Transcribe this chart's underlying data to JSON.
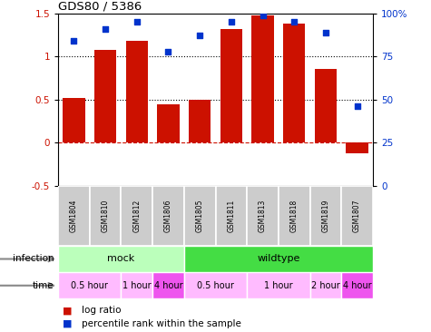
{
  "title": "GDS80 / 5386",
  "samples": [
    "GSM1804",
    "GSM1810",
    "GSM1812",
    "GSM1806",
    "GSM1805",
    "GSM1811",
    "GSM1813",
    "GSM1818",
    "GSM1819",
    "GSM1807"
  ],
  "log_ratio": [
    0.52,
    1.08,
    1.18,
    0.45,
    0.5,
    1.32,
    1.48,
    1.38,
    0.86,
    -0.12
  ],
  "percentile": [
    84,
    91,
    95,
    78,
    87,
    95,
    99,
    95,
    89,
    46
  ],
  "bar_color": "#cc1100",
  "dot_color": "#0033cc",
  "ylim_left": [
    -0.5,
    1.5
  ],
  "ylim_right": [
    0,
    100
  ],
  "yticks_left": [
    -0.5,
    0.0,
    0.5,
    1.0,
    1.5
  ],
  "ytick_labels_left": [
    "-0.5",
    "0",
    "0.5",
    "1",
    "1.5"
  ],
  "yticks_right": [
    0,
    25,
    50,
    75,
    100
  ],
  "ytick_labels_right": [
    "0",
    "25",
    "50",
    "75",
    "100%"
  ],
  "dotted_lines": [
    0.5,
    1.0
  ],
  "dashed_line": 0.0,
  "infection_groups": [
    {
      "label": "mock",
      "start": 0,
      "end": 4,
      "color": "#bbffbb"
    },
    {
      "label": "wildtype",
      "start": 4,
      "end": 10,
      "color": "#44dd44"
    }
  ],
  "time_groups": [
    {
      "label": "0.5 hour",
      "start": 0,
      "end": 2,
      "color": "#ffbbff"
    },
    {
      "label": "1 hour",
      "start": 2,
      "end": 3,
      "color": "#ffbbff"
    },
    {
      "label": "4 hour",
      "start": 3,
      "end": 4,
      "color": "#ee55ee"
    },
    {
      "label": "0.5 hour",
      "start": 4,
      "end": 6,
      "color": "#ffbbff"
    },
    {
      "label": "1 hour",
      "start": 6,
      "end": 8,
      "color": "#ffbbff"
    },
    {
      "label": "2 hour",
      "start": 8,
      "end": 9,
      "color": "#ffbbff"
    },
    {
      "label": "4 hour",
      "start": 9,
      "end": 10,
      "color": "#ee55ee"
    }
  ],
  "sample_bg_color": "#cccccc",
  "sample_divider_color": "#ffffff",
  "legend_log_ratio": "log ratio",
  "legend_percentile": "percentile rank within the sample",
  "infection_label": "infection",
  "time_label": "time",
  "arrow_color": "#888888"
}
